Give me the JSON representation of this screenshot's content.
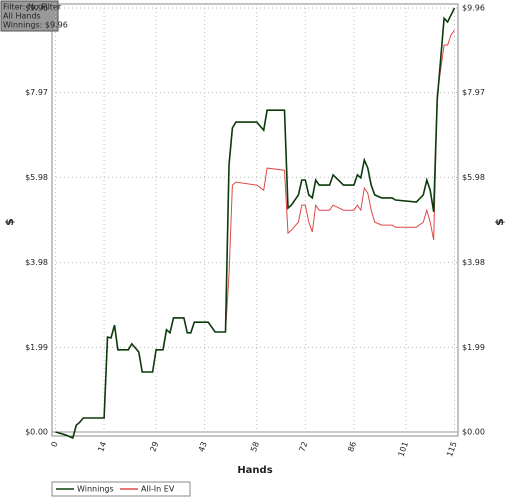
{
  "info_box": [
    "Filter: No Filter",
    "All Hands",
    "Winnings: $9.96"
  ],
  "chart_data": {
    "type": "line",
    "x_label": "Hands",
    "y_label": "$",
    "y2_label": "$",
    "x": [
      0,
      3,
      5,
      6,
      7,
      8,
      14,
      15,
      16,
      17,
      18,
      21,
      22,
      24,
      25,
      28,
      29,
      31,
      32,
      33,
      34,
      37,
      38,
      39,
      40,
      44,
      46,
      49,
      50,
      51,
      52,
      58,
      60,
      61,
      66,
      67,
      68,
      70,
      71,
      72,
      73,
      74,
      75,
      76,
      79,
      80,
      83,
      86,
      87,
      88,
      89,
      90,
      91,
      92,
      94,
      97,
      98,
      104,
      106,
      107,
      108,
      109,
      110,
      111,
      112,
      113,
      114,
      115
    ],
    "series": [
      {
        "name": "Winnings",
        "color": "#0b3a0b",
        "values": [
          0,
          -0.07,
          -0.14,
          0.16,
          0.23,
          0.33,
          0.33,
          2.23,
          2.21,
          2.51,
          1.93,
          1.93,
          2.07,
          1.88,
          1.41,
          1.41,
          1.93,
          1.93,
          2.4,
          2.33,
          2.68,
          2.68,
          2.33,
          2.33,
          2.58,
          2.58,
          2.35,
          2.35,
          6.27,
          7.14,
          7.28,
          7.28,
          7.09,
          7.56,
          7.56,
          5.26,
          5.33,
          5.57,
          5.92,
          5.92,
          5.57,
          5.5,
          5.92,
          5.8,
          5.8,
          6.04,
          5.8,
          5.8,
          6.04,
          5.97,
          6.39,
          6.2,
          5.8,
          5.57,
          5.5,
          5.5,
          5.45,
          5.4,
          5.57,
          5.92,
          5.68,
          5.17,
          7.8,
          8.74,
          9.72,
          9.63,
          9.8,
          9.96
        ]
      },
      {
        "name": "All-In EV",
        "color": "#e04848",
        "values": [
          0,
          -0.07,
          -0.14,
          0.16,
          0.23,
          0.33,
          0.33,
          2.23,
          2.21,
          2.51,
          1.93,
          1.93,
          2.07,
          1.88,
          1.41,
          1.41,
          1.93,
          1.93,
          2.4,
          2.33,
          2.68,
          2.68,
          2.33,
          2.33,
          2.58,
          2.58,
          2.35,
          2.35,
          3.69,
          5.8,
          5.87,
          5.8,
          5.68,
          6.2,
          6.15,
          4.67,
          4.74,
          4.93,
          5.33,
          5.33,
          4.93,
          4.7,
          5.33,
          5.21,
          5.21,
          5.33,
          5.21,
          5.21,
          5.33,
          5.21,
          5.73,
          5.61,
          5.21,
          4.93,
          4.86,
          4.86,
          4.81,
          4.81,
          4.93,
          5.21,
          4.93,
          4.51,
          7.92,
          8.5,
          9.09,
          9.09,
          9.33,
          9.44
        ]
      }
    ],
    "xlim": [
      -1,
      116
    ],
    "xticks": [
      0,
      14,
      29,
      43,
      58,
      72,
      86,
      101,
      115
    ],
    "ylim": [
      0,
      9.96
    ],
    "yticks": [
      {
        "value": 0,
        "label": "$0.00"
      },
      {
        "value": 1.99,
        "label": "$1.99"
      },
      {
        "value": 3.98,
        "label": "$3.98"
      },
      {
        "value": 5.98,
        "label": "$5.98"
      },
      {
        "value": 7.97,
        "label": "$7.97"
      },
      {
        "value": 9.96,
        "label": "$9.96"
      }
    ],
    "grid": true,
    "legend": "bottom"
  }
}
